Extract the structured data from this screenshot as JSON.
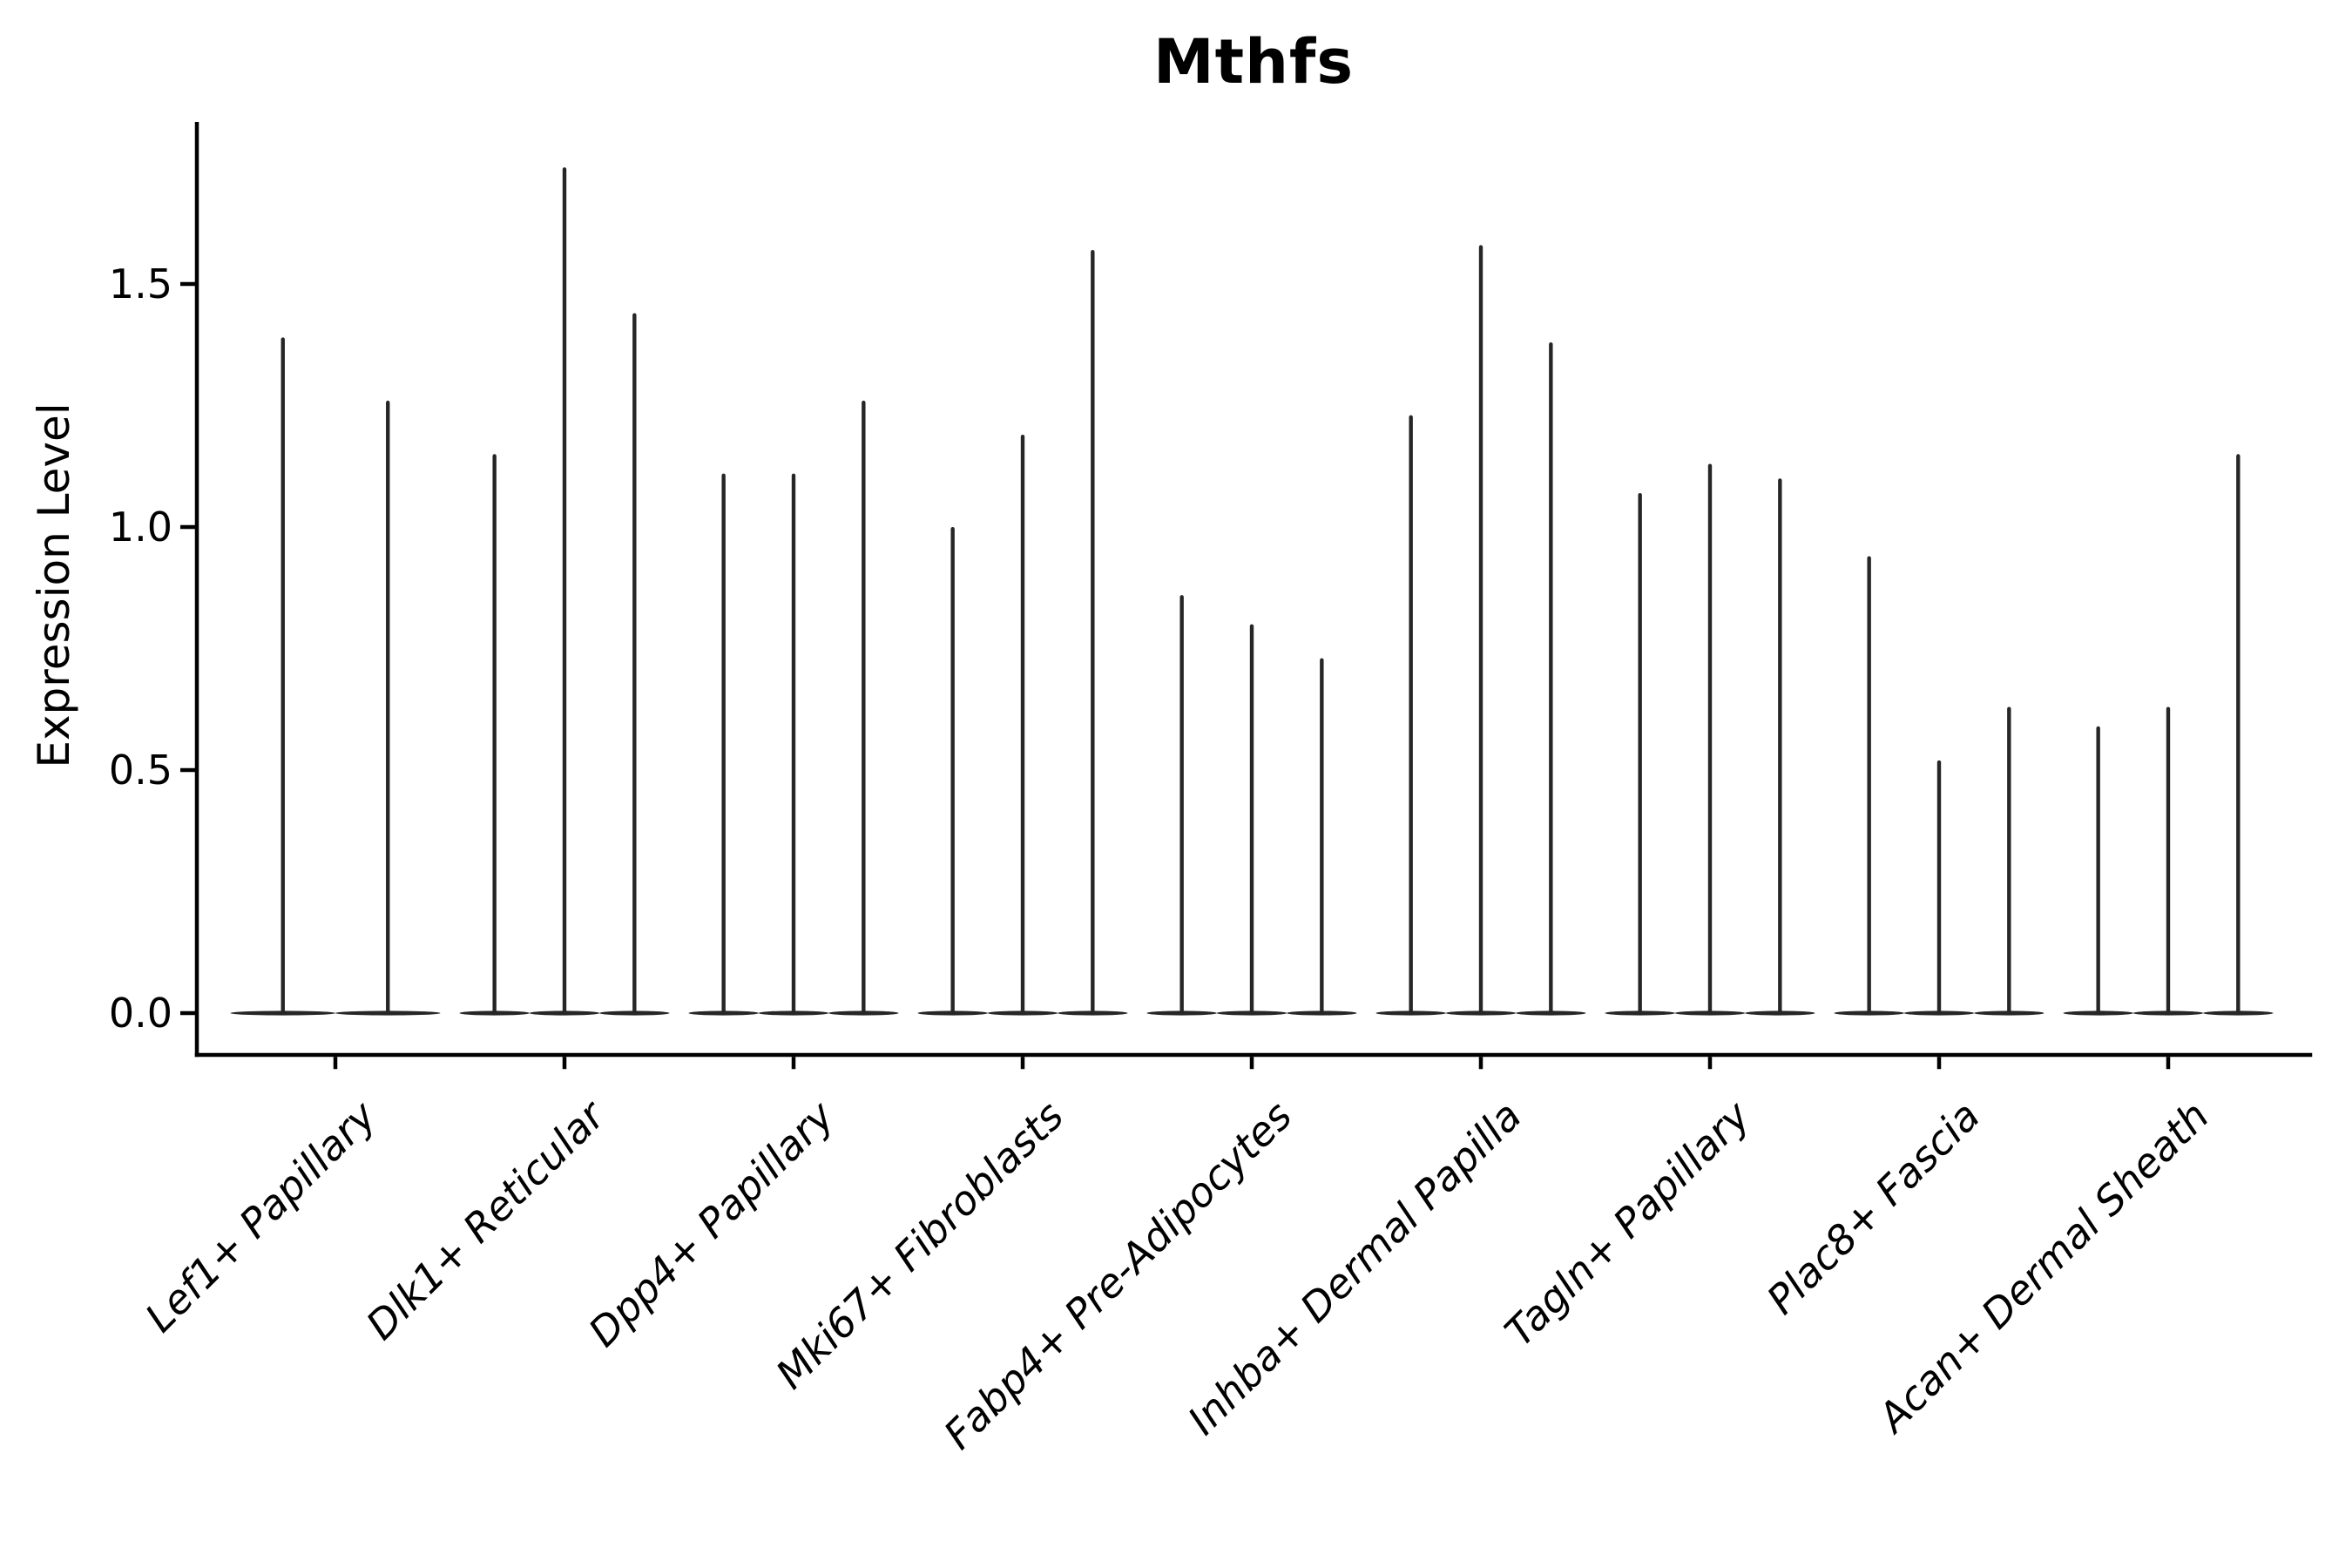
{
  "chart_data": {
    "type": "violin",
    "title": "Mthfs",
    "ylabel": "Expression Level",
    "xlabel": "",
    "ylim": [
      -0.08,
      1.83
    ],
    "yticks": [
      0.0,
      0.5,
      1.0,
      1.5
    ],
    "ytick_labels": [
      "0.0",
      "0.5",
      "1.0",
      "1.5"
    ],
    "grid": false,
    "legend": "none",
    "baseline_value": 0,
    "description": "Very thin violin plots per cluster; density concentrated at 0 (flat base) with a narrow spike rising to the maximum expression value",
    "groups": [
      {
        "label": "Lef1+ Papillary",
        "violin_maxima": [
          1.39,
          1.26
        ]
      },
      {
        "label": "Dlk1+ Reticular",
        "violin_maxima": [
          1.15,
          1.74,
          1.44
        ]
      },
      {
        "label": "Dpp4+ Papillary",
        "violin_maxima": [
          1.11,
          1.11,
          1.26
        ]
      },
      {
        "label": "Mki67+ Fibroblasts",
        "violin_maxima": [
          1.0,
          1.19,
          1.57
        ]
      },
      {
        "label": "Fabp4+ Pre-Adipocytes",
        "violin_maxima": [
          0.86,
          0.8,
          0.73
        ]
      },
      {
        "label": "Inhba+ Dermal Papilla",
        "violin_maxima": [
          1.23,
          1.58,
          1.38
        ]
      },
      {
        "label": "Tagln+ Papillary",
        "violin_maxima": [
          1.07,
          1.13,
          1.1
        ]
      },
      {
        "label": "Plac8+ Fascia",
        "violin_maxima": [
          0.94,
          0.52,
          0.63
        ]
      },
      {
        "label": "Acan+ Dermal Sheath",
        "violin_maxima": [
          0.59,
          0.63,
          1.15
        ]
      }
    ],
    "colors": {
      "violin": "#262626",
      "axis": "#000000",
      "background": "#ffffff"
    }
  }
}
